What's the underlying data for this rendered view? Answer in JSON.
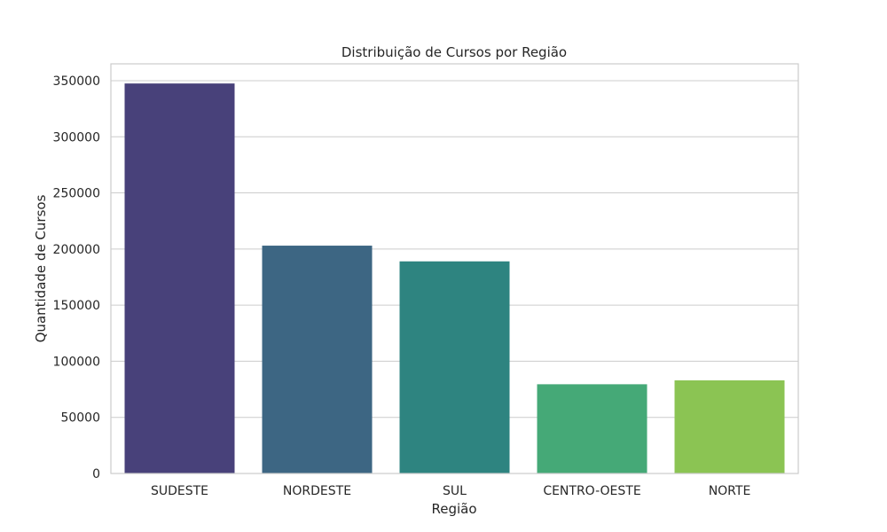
{
  "chart_data": {
    "type": "bar",
    "title": "Distribuição de Cursos por Região",
    "xlabel": "Região",
    "ylabel": "Quantidade de Cursos",
    "categories": [
      "SUDESTE",
      "NORDESTE",
      "SUL",
      "CENTRO-OESTE",
      "NORTE"
    ],
    "values": [
      347500,
      203000,
      189000,
      79500,
      83000
    ],
    "colors": [
      "#48417a",
      "#3d6683",
      "#2e8480",
      "#45a977",
      "#8bc453"
    ],
    "ylim": [
      0,
      365000
    ],
    "yticks": [
      0,
      50000,
      100000,
      150000,
      200000,
      250000,
      300000,
      350000
    ],
    "ytick_labels": [
      "0",
      "50000",
      "100000",
      "150000",
      "200000",
      "250000",
      "300000",
      "350000"
    ],
    "grid": true,
    "grid_axis": "y"
  }
}
